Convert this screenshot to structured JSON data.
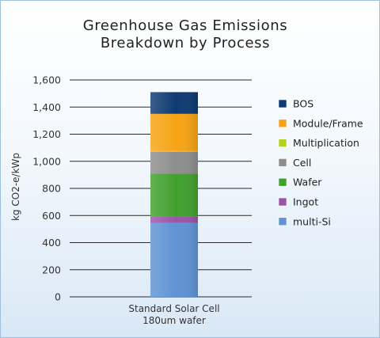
{
  "chart_data": {
    "type": "bar",
    "stacked": true,
    "title_lines": [
      "Greenhouse Gas Emissions",
      "Breakdown by Process"
    ],
    "ylabel": "kg CO2-e/kWp",
    "xlabel": "",
    "categories": [
      [
        "Standard Solar Cell",
        "180um wafer"
      ]
    ],
    "ylim": [
      0,
      1600
    ],
    "yticks": [
      0,
      200,
      400,
      600,
      800,
      1000,
      1200,
      1400,
      1600
    ],
    "ytick_labels": [
      "0",
      "200",
      "400",
      "600",
      "800",
      "1,000",
      "1,200",
      "1,400",
      "1,600"
    ],
    "grid": true,
    "legend_position": "right",
    "series": [
      {
        "name": "multi-Si",
        "values": [
          545
        ],
        "color": "#5f93d4"
      },
      {
        "name": "Ingot",
        "values": [
          50
        ],
        "color": "#9a55a8"
      },
      {
        "name": "Wafer",
        "values": [
          315
        ],
        "color": "#41a02e"
      },
      {
        "name": "Cell",
        "values": [
          160
        ],
        "color": "#8e8e8e"
      },
      {
        "name": "Multiplication",
        "values": [
          5
        ],
        "color": "#b5d11f"
      },
      {
        "name": "Module/Frame",
        "values": [
          275
        ],
        "color": "#f7a414"
      },
      {
        "name": "BOS",
        "values": [
          160
        ],
        "color": "#0e3a73"
      }
    ]
  }
}
